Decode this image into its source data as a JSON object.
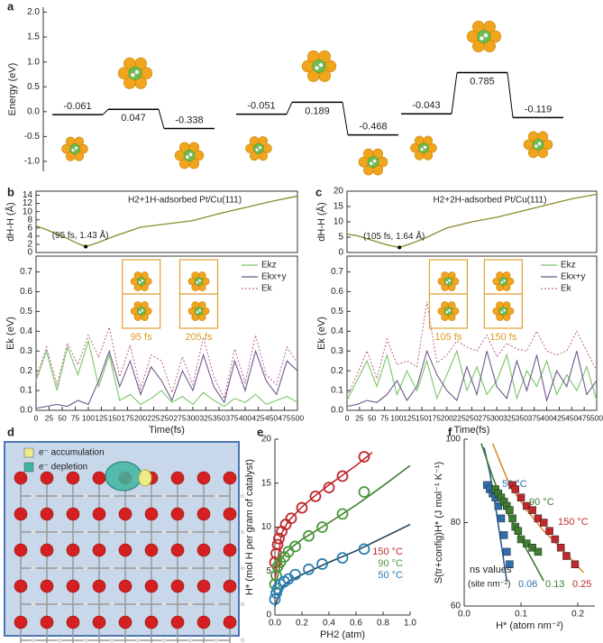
{
  "chart_data": [
    {
      "type": "energy",
      "panel": "a",
      "ylabel": "Energy (eV)",
      "ylim": [
        -1.2,
        2.1
      ],
      "yticks": [
        {
          "value": -1.0,
          "label": "-1.0"
        },
        -0.5,
        {
          "value": 0,
          "label": "0.0"
        },
        0.5,
        {
          "value": 1.0,
          "label": "1.0"
        },
        1.5,
        {
          "value": 2.0,
          "label": "2.0"
        }
      ],
      "series": [
        {
          "values": [
            -0.061,
            0.047,
            -0.338
          ],
          "color": "#000000"
        },
        {
          "values": [
            -0.051,
            0.189,
            -0.468
          ],
          "color": "#000000"
        },
        {
          "values": [
            -0.043,
            0.785,
            -0.119
          ],
          "color": "#000000"
        }
      ]
    },
    {
      "type": "line",
      "panel": "b",
      "title": "H2+1H-adsorbed Pt/Cu(111)",
      "ylabel": "dH-H (Å)",
      "annotation": "(95 fs, 1.43 Å)",
      "x": [
        0,
        20,
        40,
        60,
        80,
        95,
        120,
        150,
        200,
        250,
        300,
        350,
        400,
        450,
        500
      ],
      "values": [
        6.5,
        5.6,
        4.5,
        3.4,
        2.2,
        1.43,
        2.5,
        4.0,
        6.2,
        7.0,
        7.8,
        9.5,
        11.0,
        12.5,
        13.8
      ],
      "color": "#8b8a2a",
      "xlim": [
        0,
        500
      ],
      "ylim": [
        0,
        15
      ],
      "yticks": [
        0,
        2,
        4,
        6,
        8,
        10,
        12,
        14
      ]
    },
    {
      "type": "line",
      "ylabel": "Ek (eV)",
      "xlabel": "Time(fs)",
      "legend": "upper right",
      "insets": [
        "95 fs",
        "205 fs"
      ],
      "x": [
        0,
        20,
        40,
        60,
        80,
        100,
        120,
        140,
        160,
        180,
        200,
        220,
        240,
        260,
        280,
        300,
        320,
        340,
        360,
        380,
        400,
        420,
        440,
        460,
        480,
        500
      ],
      "series": [
        {
          "name": "Ekz",
          "color": "#7cc46a",
          "values": [
            0.15,
            0.3,
            0.1,
            0.32,
            0.18,
            0.35,
            0.12,
            0.28,
            0.05,
            0.08,
            0.03,
            0.06,
            0.1,
            0.04,
            0.07,
            0.03,
            0.09,
            0.05,
            0.02,
            0.06,
            0.04,
            0.08,
            0.03,
            0.05,
            0.07,
            0.04
          ]
        },
        {
          "name": "Ekx+y",
          "color": "#6b5b8c",
          "values": [
            0.01,
            0.02,
            0.03,
            0.02,
            0.05,
            0.03,
            0.15,
            0.3,
            0.12,
            0.25,
            0.08,
            0.22,
            0.15,
            0.05,
            0.2,
            0.1,
            0.28,
            0.12,
            0.04,
            0.25,
            0.1,
            0.3,
            0.15,
            0.08,
            0.25,
            0.2
          ]
        },
        {
          "name": "Ek",
          "color": "#c0708a",
          "style": "dotted",
          "values": [
            0.16,
            0.32,
            0.13,
            0.34,
            0.23,
            0.38,
            0.27,
            0.42,
            0.17,
            0.33,
            0.11,
            0.28,
            0.25,
            0.09,
            0.27,
            0.13,
            0.37,
            0.17,
            0.06,
            0.31,
            0.14,
            0.38,
            0.18,
            0.13,
            0.32,
            0.24
          ]
        }
      ],
      "xlim": [
        0,
        500
      ],
      "xticks": [
        0,
        25,
        50,
        75,
        100,
        125,
        150,
        175,
        200,
        225,
        250,
        275,
        300,
        325,
        350,
        375,
        400,
        425,
        450,
        475,
        500
      ],
      "ylim": [
        0,
        0.78
      ],
      "yticks": [
        {
          "value": 0,
          "label": "0.0"
        },
        0.1,
        0.2,
        0.3,
        0.4,
        0.5,
        0.6,
        0.7
      ]
    },
    {
      "type": "line",
      "panel": "c",
      "title": "H2+2H-adsorbed Pt/Cu(111)",
      "ylabel": "dH-H (Å)",
      "annotation": "(105 fs, 1.64 Å)",
      "x": [
        0,
        20,
        40,
        60,
        80,
        105,
        130,
        160,
        200,
        250,
        300,
        350,
        400,
        450,
        500
      ],
      "values": [
        6.0,
        5.5,
        4.5,
        3.5,
        2.5,
        1.64,
        3.0,
        5.0,
        8.0,
        10.0,
        11.5,
        13.5,
        15.5,
        17.5,
        19.0
      ],
      "color": "#8b8a2a",
      "xlim": [
        0,
        500
      ],
      "ylim": [
        0,
        20
      ],
      "yticks": [
        0,
        5,
        10,
        15,
        20
      ]
    },
    {
      "type": "line",
      "ylabel": "Ek (eV)",
      "xlabel": "Time(fs)",
      "legend": "upper right",
      "insets": [
        "105 fs",
        "150 fs"
      ],
      "x": [
        0,
        20,
        40,
        60,
        80,
        100,
        120,
        140,
        160,
        180,
        200,
        220,
        240,
        260,
        280,
        300,
        320,
        340,
        360,
        380,
        400,
        420,
        440,
        460,
        480,
        500
      ],
      "series": [
        {
          "name": "Ekz",
          "color": "#7cc46a",
          "values": [
            0.05,
            0.15,
            0.25,
            0.12,
            0.28,
            0.08,
            0.2,
            0.1,
            0.25,
            0.06,
            0.18,
            0.3,
            0.1,
            0.22,
            0.08,
            0.15,
            0.28,
            0.06,
            0.2,
            0.12,
            0.25,
            0.08,
            0.18,
            0.1,
            0.22,
            0.05
          ]
        },
        {
          "name": "Ekx+y",
          "color": "#6b5b8c",
          "values": [
            0.02,
            0.03,
            0.05,
            0.04,
            0.08,
            0.15,
            0.05,
            0.12,
            0.3,
            0.18,
            0.1,
            0.05,
            0.22,
            0.08,
            0.3,
            0.12,
            0.06,
            0.25,
            0.1,
            0.28,
            0.05,
            0.2,
            0.12,
            0.3,
            0.08,
            0.15
          ]
        },
        {
          "name": "Ek",
          "color": "#c0708a",
          "style": "dotted",
          "values": [
            0.07,
            0.18,
            0.3,
            0.16,
            0.36,
            0.23,
            0.25,
            0.22,
            0.55,
            0.24,
            0.28,
            0.35,
            0.32,
            0.3,
            0.38,
            0.27,
            0.34,
            0.31,
            0.3,
            0.4,
            0.3,
            0.28,
            0.3,
            0.4,
            0.3,
            0.2
          ]
        }
      ],
      "xlim": [
        0,
        500
      ],
      "xticks": [
        0,
        25,
        50,
        75,
        100,
        125,
        150,
        175,
        200,
        225,
        250,
        275,
        300,
        325,
        350,
        375,
        400,
        425,
        450,
        475,
        500
      ],
      "ylim": [
        0,
        0.78
      ],
      "yticks": [
        {
          "value": 0,
          "label": "0.0"
        },
        0.1,
        0.2,
        0.3,
        0.4,
        0.5,
        0.6,
        0.7
      ]
    },
    {
      "type": "structure",
      "panel": "d",
      "legend": [
        {
          "name": "e⁻ accumulation",
          "color": "#ecec8a"
        },
        {
          "name": "e⁻ depletion",
          "color": "#3fb5a0"
        }
      ]
    },
    {
      "type": "scatter",
      "panel": "e",
      "marker": "circle",
      "ylabel": "H* (mol H per gram of catalyst)",
      "xlabel": "PH2 (atm)",
      "xlim": [
        0,
        1.0
      ],
      "xticks": [
        {
          "value": 0,
          "label": "0.0"
        },
        0.2,
        0.4,
        0.6,
        0.8,
        {
          "value": 1.0,
          "label": "1.0"
        }
      ],
      "ylim": [
        0,
        20
      ],
      "yticks": [
        0,
        5,
        10,
        15,
        20
      ],
      "series": [
        {
          "name": "150 °C",
          "color": "#c0282c",
          "x": [
            0,
            0.01,
            0.02,
            0.03,
            0.05,
            0.08,
            0.12,
            0.2,
            0.3,
            0.4,
            0.5,
            0.66
          ],
          "values": [
            6,
            7,
            8,
            8.7,
            9.5,
            10.3,
            11,
            12.2,
            13.5,
            14.5,
            15.8,
            18
          ]
        },
        {
          "name": "90 °C",
          "color": "#4a9a3a",
          "x": [
            0,
            0.01,
            0.02,
            0.04,
            0.07,
            0.1,
            0.15,
            0.25,
            0.35,
            0.5,
            0.66
          ],
          "values": [
            3.5,
            4.5,
            5.5,
            6,
            6.6,
            7.2,
            7.8,
            9,
            10,
            11.5,
            14
          ]
        },
        {
          "name": "50 °C",
          "color": "#2a7fb0",
          "x": [
            0,
            0.01,
            0.02,
            0.04,
            0.07,
            0.1,
            0.15,
            0.25,
            0.35,
            0.5,
            0.66
          ],
          "values": [
            1.8,
            2.5,
            3,
            3.5,
            3.8,
            4.1,
            4.6,
            5.2,
            5.8,
            6.5,
            7.5
          ]
        }
      ],
      "fits": [
        {
          "color": "#c0282c",
          "x": [
            0,
            0.05,
            0.1,
            0.2,
            0.3,
            0.4,
            0.5,
            0.6,
            0.72
          ],
          "values": [
            4,
            9.3,
            10.7,
            12.3,
            13.6,
            14.8,
            15.9,
            17.0,
            18.5
          ]
        },
        {
          "color": "#3e7c2e",
          "x": [
            0,
            0.05,
            0.1,
            0.2,
            0.4,
            0.6,
            0.8,
            1.0
          ],
          "values": [
            3,
            6.5,
            7.4,
            8.6,
            10.5,
            12.5,
            14.7,
            17.0
          ]
        },
        {
          "color": "#1f3f5a",
          "x": [
            0,
            0.05,
            0.1,
            0.2,
            0.4,
            0.6,
            0.8,
            1.0
          ],
          "values": [
            1,
            3.2,
            3.8,
            4.6,
            6.0,
            7.3,
            8.8,
            10.3
          ]
        }
      ]
    },
    {
      "type": "scatter",
      "panel": "f",
      "marker": "square",
      "ylabel": "S(tr+config)H* (J mol⁻¹ K⁻¹)",
      "xlabel": "H* (atom nm⁻²)",
      "ns_title": "ns values",
      "ns_unit": "(site nm⁻²)",
      "xlim": [
        0,
        0.23
      ],
      "xticks": [
        {
          "value": 0,
          "label": "0.0"
        },
        0.1,
        0.2
      ],
      "ylim": [
        60,
        100
      ],
      "yticks": [
        60,
        80,
        100
      ],
      "series": [
        {
          "name": "50 °C",
          "color": "#2f6fb0",
          "ns": 0.06,
          "x": [
            0.04,
            0.045,
            0.05,
            0.055,
            0.06,
            0.065,
            0.07,
            0.075,
            0.08
          ],
          "values": [
            89,
            88,
            87,
            86,
            84,
            81,
            77,
            73,
            70
          ]
        },
        {
          "name": "90 °C",
          "color": "#3e7c2e",
          "ns": 0.13,
          "x": [
            0.055,
            0.06,
            0.065,
            0.07,
            0.075,
            0.08,
            0.085,
            0.09,
            0.095,
            0.1,
            0.11,
            0.12,
            0.13
          ],
          "values": [
            88,
            87,
            86,
            85,
            84,
            83,
            81,
            79,
            78,
            76,
            75,
            74,
            73
          ]
        },
        {
          "name": "150 °C",
          "color": "#c0282c",
          "ns": 0.25,
          "x": [
            0.085,
            0.09,
            0.1,
            0.11,
            0.12,
            0.13,
            0.14,
            0.15,
            0.16,
            0.17,
            0.18,
            0.195
          ],
          "values": [
            89,
            88,
            86,
            84,
            83,
            81,
            80,
            78,
            76,
            74,
            72,
            70
          ]
        }
      ],
      "fits": [
        {
          "color": "#2f5b9a",
          "x": [
            0.035,
            0.045,
            0.055,
            0.065,
            0.075
          ],
          "values": [
            98,
            92,
            84,
            75,
            66
          ]
        },
        {
          "color": "#3e7c2e",
          "x": [
            0.03,
            0.05,
            0.07,
            0.1,
            0.12,
            0.14
          ],
          "values": [
            99,
            91,
            84,
            76,
            71,
            66
          ]
        },
        {
          "color": "#e08a2a",
          "x": [
            0.05,
            0.08,
            0.11,
            0.14,
            0.17,
            0.21
          ],
          "values": [
            99,
            89,
            83,
            78,
            74,
            68
          ]
        }
      ]
    }
  ]
}
